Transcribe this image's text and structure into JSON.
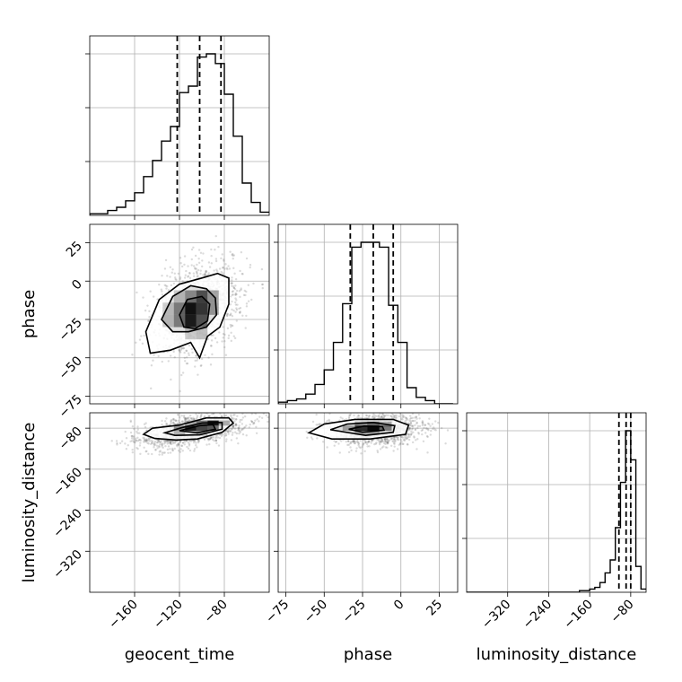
{
  "chart_data": {
    "type": "corner",
    "parameters": [
      "geocent_time",
      "phase",
      "luminosity_distance"
    ],
    "ranges": {
      "geocent_time": [
        -200,
        -40
      ],
      "phase": [
        -80,
        37
      ],
      "luminosity_distance": [
        -400,
        -50
      ]
    },
    "ticks": {
      "geocent_time": [
        -160,
        -120,
        -80
      ],
      "phase": [
        -75,
        -50,
        -25,
        0,
        25
      ],
      "luminosity_distance": [
        -320,
        -240,
        -160,
        -80
      ]
    },
    "tick_labels": {
      "geocent_time": [
        "−160",
        "−120",
        "−80"
      ],
      "phase": [
        "−75",
        "−50",
        "−25",
        "0",
        "25"
      ],
      "luminosity_distance": [
        "−320",
        "−240",
        "−160",
        "−80"
      ]
    },
    "quantiles": {
      "geocent_time": [
        -122,
        -102,
        -83
      ],
      "phase": [
        -33,
        -18,
        -5
      ],
      "luminosity_distance": [
        -103,
        -89,
        -80
      ]
    },
    "histograms": {
      "geocent_time": {
        "edges": [
          -200,
          -192,
          -184,
          -176,
          -168,
          -160,
          -152,
          -144,
          -136,
          -128,
          -120,
          -112,
          -104,
          -96,
          -88,
          -80,
          -72,
          -64,
          -56,
          -48,
          -40
        ],
        "counts": [
          1,
          1,
          3,
          5,
          9,
          14,
          24,
          34,
          46,
          55,
          76,
          80,
          98,
          100,
          94,
          75,
          49,
          20,
          8,
          2
        ]
      },
      "phase": {
        "edges": [
          -80,
          -74,
          -68,
          -62,
          -56,
          -50,
          -44,
          -38,
          -32,
          -26,
          -20,
          -14,
          -8,
          -2,
          4,
          10,
          16,
          22,
          28,
          34
        ],
        "counts": [
          1,
          2,
          3,
          6,
          12,
          21,
          38,
          62,
          97,
          100,
          100,
          97,
          61,
          38,
          10,
          4,
          2,
          0,
          0
        ]
      },
      "luminosity_distance": {
        "edges": [
          -400,
          -390,
          -380,
          -370,
          -360,
          -350,
          -340,
          -330,
          -320,
          -310,
          -300,
          -290,
          -280,
          -270,
          -260,
          -250,
          -240,
          -230,
          -220,
          -210,
          -200,
          -190,
          -180,
          -170,
          -160,
          -150,
          -140,
          -130,
          -120,
          -110,
          -100,
          -90,
          -80,
          -70,
          -60,
          -50
        ],
        "counts": [
          0,
          0,
          0,
          0,
          0,
          0,
          0,
          0,
          0,
          0,
          0,
          0,
          0,
          0,
          0,
          0,
          0,
          0,
          0,
          0,
          0,
          0,
          1,
          1,
          2,
          3,
          6,
          12,
          20,
          40,
          68,
          100,
          82,
          16,
          2
        ]
      }
    },
    "contours_2d": [
      {
        "x": "geocent_time",
        "y": "phase",
        "levels": [
          [
            [
              -150,
              -33
            ],
            [
              -138,
              -12
            ],
            [
              -120,
              -2
            ],
            [
              -100,
              2
            ],
            [
              -86,
              5
            ],
            [
              -76,
              2
            ],
            [
              -76,
              -15
            ],
            [
              -84,
              -30
            ],
            [
              -95,
              -36
            ],
            [
              -102,
              -50
            ],
            [
              -110,
              -40
            ],
            [
              -128,
              -45
            ],
            [
              -146,
              -47
            ]
          ],
          [
            [
              -136,
              -25
            ],
            [
              -126,
              -10
            ],
            [
              -110,
              -3
            ],
            [
              -96,
              -5
            ],
            [
              -88,
              -11
            ],
            [
              -87,
              -22
            ],
            [
              -96,
              -30
            ],
            [
              -112,
              -33
            ],
            [
              -126,
              -33
            ]
          ],
          [
            [
              -120,
              -22
            ],
            [
              -113,
              -12
            ],
            [
              -100,
              -10
            ],
            [
              -93,
              -15
            ],
            [
              -95,
              -26
            ],
            [
              -106,
              -31
            ],
            [
              -116,
              -30
            ]
          ]
        ],
        "density_cells": [
          [
            -120,
            -18,
            0.45
          ],
          [
            -110,
            -18,
            0.9
          ],
          [
            -100,
            -18,
            0.7
          ],
          [
            -110,
            -26,
            0.85
          ],
          [
            -100,
            -26,
            0.55
          ],
          [
            -120,
            -26,
            0.45
          ],
          [
            -110,
            -10,
            0.4
          ],
          [
            -100,
            -10,
            0.65
          ],
          [
            -90,
            -10,
            0.35
          ],
          [
            -90,
            -18,
            0.35
          ],
          [
            -130,
            -18,
            0.18
          ],
          [
            -120,
            -10,
            0.2
          ],
          [
            -130,
            -26,
            0.2
          ],
          [
            -100,
            -34,
            0.25
          ],
          [
            -110,
            -34,
            0.2
          ]
        ],
        "scatter": {
          "seed": 7,
          "n": 1300,
          "center": [
            -105,
            -18
          ],
          "sd": [
            19,
            15
          ],
          "rho": 0.35
        }
      },
      {
        "x": "geocent_time",
        "y": "luminosity_distance",
        "levels": [
          [
            [
              -152,
              -92
            ],
            [
              -144,
              -80
            ],
            [
              -120,
              -74
            ],
            [
              -96,
              -60
            ],
            [
              -76,
              -60
            ],
            [
              -72,
              -70
            ],
            [
              -82,
              -88
            ],
            [
              -104,
              -101
            ],
            [
              -123,
              -103
            ],
            [
              -142,
              -100
            ]
          ],
          [
            [
              -133,
              -89
            ],
            [
              -118,
              -79
            ],
            [
              -100,
              -70
            ],
            [
              -82,
              -69
            ],
            [
              -82,
              -82
            ],
            [
              -102,
              -93
            ],
            [
              -124,
              -94
            ]
          ],
          [
            [
              -120,
              -85
            ],
            [
              -102,
              -75
            ],
            [
              -90,
              -73
            ],
            [
              -88,
              -82
            ],
            [
              -104,
              -89
            ]
          ]
        ],
        "density_cells": [
          [
            -90,
            -70,
            0.9
          ],
          [
            -100,
            -70,
            0.55
          ],
          [
            -110,
            -80,
            0.85
          ],
          [
            -100,
            -80,
            0.6
          ],
          [
            -90,
            -80,
            0.5
          ],
          [
            -120,
            -80,
            0.4
          ],
          [
            -110,
            -70,
            0.3
          ],
          [
            -80,
            -70,
            0.3
          ],
          [
            -120,
            -90,
            0.2
          ],
          [
            -100,
            -90,
            0.2
          ]
        ],
        "scatter": {
          "seed": 11,
          "n": 1300,
          "center": [
            -108,
            -85
          ],
          "sd": [
            24,
            17
          ],
          "rho": 0.5
        }
      },
      {
        "x": "phase",
        "y": "luminosity_distance",
        "levels": [
          [
            [
              -60,
              -89
            ],
            [
              -50,
              -72
            ],
            [
              -30,
              -63
            ],
            [
              -5,
              -63
            ],
            [
              5,
              -74
            ],
            [
              3,
              -92
            ],
            [
              -20,
              -101
            ],
            [
              -45,
              -101
            ]
          ],
          [
            [
              -46,
              -83
            ],
            [
              -35,
              -72
            ],
            [
              -18,
              -69
            ],
            [
              -4,
              -75
            ],
            [
              -5,
              -88
            ],
            [
              -23,
              -94
            ]
          ],
          [
            [
              -34,
              -82
            ],
            [
              -24,
              -76
            ],
            [
              -12,
              -77
            ],
            [
              -11,
              -84
            ],
            [
              -25,
              -88
            ]
          ]
        ],
        "density_cells": [
          [
            -18,
            -80,
            0.95
          ],
          [
            -26,
            -80,
            0.75
          ],
          [
            -10,
            -80,
            0.45
          ],
          [
            -18,
            -72,
            0.55
          ],
          [
            -26,
            -72,
            0.35
          ],
          [
            -10,
            -72,
            0.3
          ],
          [
            -34,
            -80,
            0.3
          ],
          [
            -18,
            -88,
            0.3
          ],
          [
            -26,
            -88,
            0.25
          ]
        ],
        "scatter": {
          "seed": 23,
          "n": 1300,
          "center": [
            -17,
            -83
          ],
          "sd": [
            15,
            15
          ],
          "rho": 0.05
        }
      }
    ]
  },
  "labels": {
    "x0": "geocent_time",
    "x1": "phase",
    "x2": "luminosity_distance",
    "y1": "phase",
    "y2": "luminosity_distance"
  }
}
